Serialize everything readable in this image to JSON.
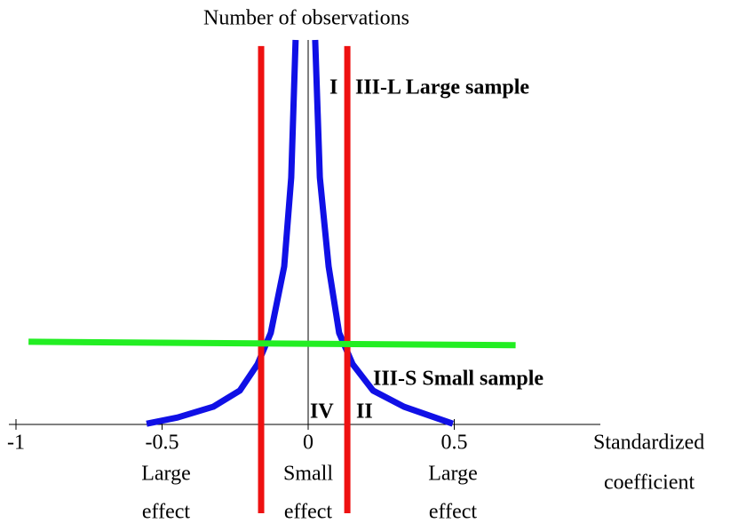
{
  "chart_data": {
    "type": "line",
    "title": "Number of observations",
    "x_label": [
      "Standardized",
      "coefficient"
    ],
    "xlim": [
      -1,
      1
    ],
    "ylim": [
      0,
      10
    ],
    "xticks": [
      -1,
      -0.5,
      0,
      0.5
    ],
    "series": [
      {
        "color": "#1010e6",
        "x": [
          -0.553,
          -0.447,
          -0.325,
          -0.234,
          -0.173,
          -0.128,
          -0.082,
          -0.058,
          -0.043,
          null,
          0.024,
          0.04,
          0.07,
          0.106,
          0.152,
          0.222,
          0.328,
          0.495
        ],
        "values": [
          0.02,
          0.18,
          0.46,
          0.88,
          1.57,
          2.38,
          4.11,
          6.42,
          10,
          null,
          10,
          6.42,
          4.11,
          2.38,
          1.57,
          0.88,
          0.46,
          0.02
        ]
      },
      {
        "color": "#ee1111",
        "x": [
          -0.161,
          -0.161
        ],
        "values": [
          -2.31,
          9.84
        ]
      },
      {
        "color": "#ee1111",
        "x": [
          0.134,
          0.134
        ],
        "values": [
          -2.31,
          9.84
        ]
      },
      {
        "color": "#22ee22",
        "x": [
          -0.957,
          0.71
        ],
        "values": [
          2.15,
          2.06
        ]
      }
    ],
    "annotations": {
      "region_i": "I",
      "region_iii_l": "III-L Large sample",
      "region_iii_s": "III-S Small sample",
      "region_iv": "IV",
      "region_ii": "II",
      "left_effect": [
        "Large",
        "effect"
      ],
      "center_effect": [
        "Small",
        "effect"
      ],
      "right_effect": [
        "Large",
        "effect"
      ]
    }
  }
}
